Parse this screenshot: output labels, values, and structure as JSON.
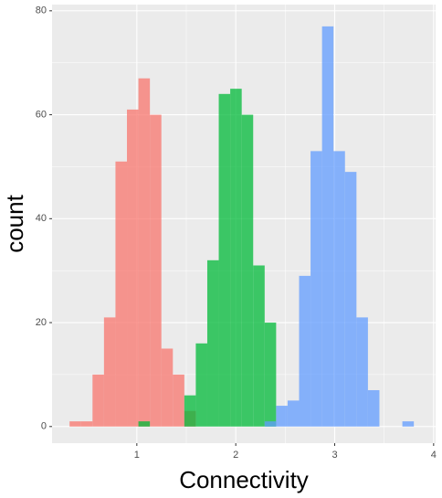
{
  "chart_data": {
    "type": "histogram",
    "xlabel": "Connectivity",
    "ylabel": "count",
    "bins": [
      0.32,
      0.436,
      0.552,
      0.668,
      0.784,
      0.9,
      1.016,
      1.132,
      1.248,
      1.364,
      1.48,
      1.596,
      1.712,
      1.828,
      1.944,
      2.06,
      2.176,
      2.292,
      2.408,
      2.524,
      2.64,
      2.756,
      2.872,
      2.988,
      3.104,
      3.22,
      3.336,
      3.452,
      3.568,
      3.684,
      3.8,
      3.916
    ],
    "series": [
      {
        "color": "#F8766D",
        "values": [
          1,
          1,
          10,
          21,
          51,
          61,
          67,
          60,
          15,
          10,
          3,
          0,
          0,
          0,
          0,
          0,
          0,
          0,
          0,
          0,
          0,
          0,
          0,
          0,
          0,
          0,
          0,
          0,
          0,
          0,
          0
        ]
      },
      {
        "color": "#00BA38",
        "values": [
          0,
          0,
          0,
          0,
          0,
          0,
          1,
          0,
          0,
          0,
          6,
          16,
          32,
          64,
          65,
          60,
          31,
          20,
          0,
          0,
          0,
          0,
          0,
          0,
          0,
          0,
          0,
          0,
          0,
          0,
          0
        ]
      },
      {
        "color": "#619CFF",
        "values": [
          0,
          0,
          0,
          0,
          0,
          0,
          0,
          0,
          0,
          0,
          0,
          0,
          0,
          0,
          0,
          0,
          0,
          1,
          4,
          5,
          29,
          53,
          77,
          53,
          49,
          21,
          7,
          0,
          0,
          1,
          0
        ]
      }
    ],
    "xlim": [
      0.143,
      4.02
    ],
    "ylim": [
      -3.2,
      81.2
    ],
    "xticks": [
      1,
      2,
      3,
      4
    ],
    "yticks": [
      0,
      20,
      40,
      60,
      80
    ],
    "grid": true
  }
}
